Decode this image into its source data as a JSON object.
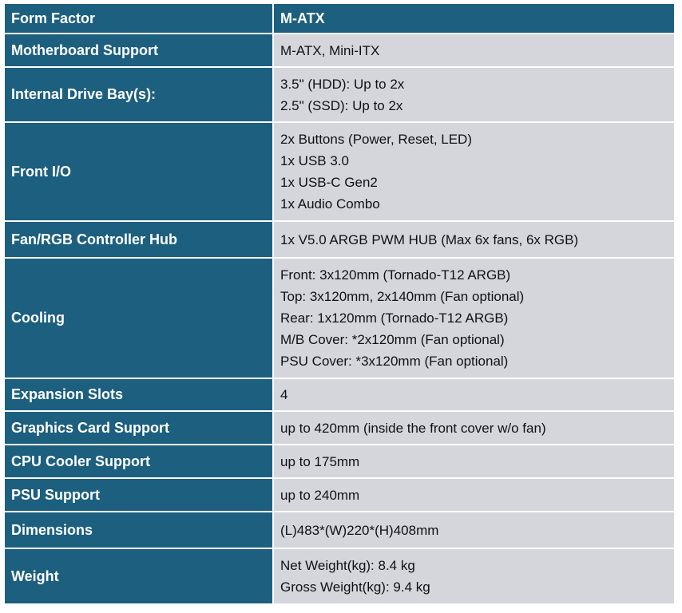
{
  "header": {
    "label": "Form Factor",
    "value": "M-ATX"
  },
  "rows": [
    {
      "label": "Motherboard Support",
      "values": [
        "M-ATX, Mini-ITX"
      ]
    },
    {
      "label": "Internal Drive Bay(s):",
      "values": [
        "3.5\" (HDD): Up to 2x",
        "2.5\" (SSD): Up to 2x"
      ]
    },
    {
      "label": "Front I/O",
      "values": [
        "2x Buttons (Power, Reset, LED)",
        "1x USB 3.0",
        "1x USB-C Gen2",
        "1x Audio Combo"
      ]
    },
    {
      "label": "Fan/RGB Controller Hub",
      "values": [
        "1x V5.0 ARGB PWM HUB (Max 6x fans, 6x RGB)"
      ]
    },
    {
      "label": "Cooling",
      "values": [
        "Front: 3x120mm (Tornado-T12 ARGB)",
        "Top: 3x120mm, 2x140mm (Fan optional)",
        "Rear: 1x120mm (Tornado-T12 ARGB)",
        "M/B Cover: *2x120mm (Fan optional)",
        "PSU Cover: *3x120mm (Fan optional)"
      ]
    },
    {
      "label": "Expansion Slots",
      "values": [
        "4"
      ]
    },
    {
      "label": "Graphics Card Support",
      "values": [
        "up to 420mm (inside the front cover w/o fan)"
      ]
    },
    {
      "label": "CPU Cooler Support",
      "values": [
        "up to 175mm"
      ]
    },
    {
      "label": "PSU Support",
      "values": [
        "up to 240mm"
      ]
    },
    {
      "label": "Dimensions",
      "values": [
        "(L)483*(W)220*(H)408mm"
      ]
    },
    {
      "label": "Weight",
      "values": [
        "Net Weight(kg): 8.4 kg",
        "Gross Weight(kg): 9.4 kg"
      ]
    }
  ],
  "colors": {
    "label_bg": "#1d5f7e",
    "value_bg": "#d4d6dc",
    "label_text": "#ffffff",
    "value_text": "#111111"
  }
}
